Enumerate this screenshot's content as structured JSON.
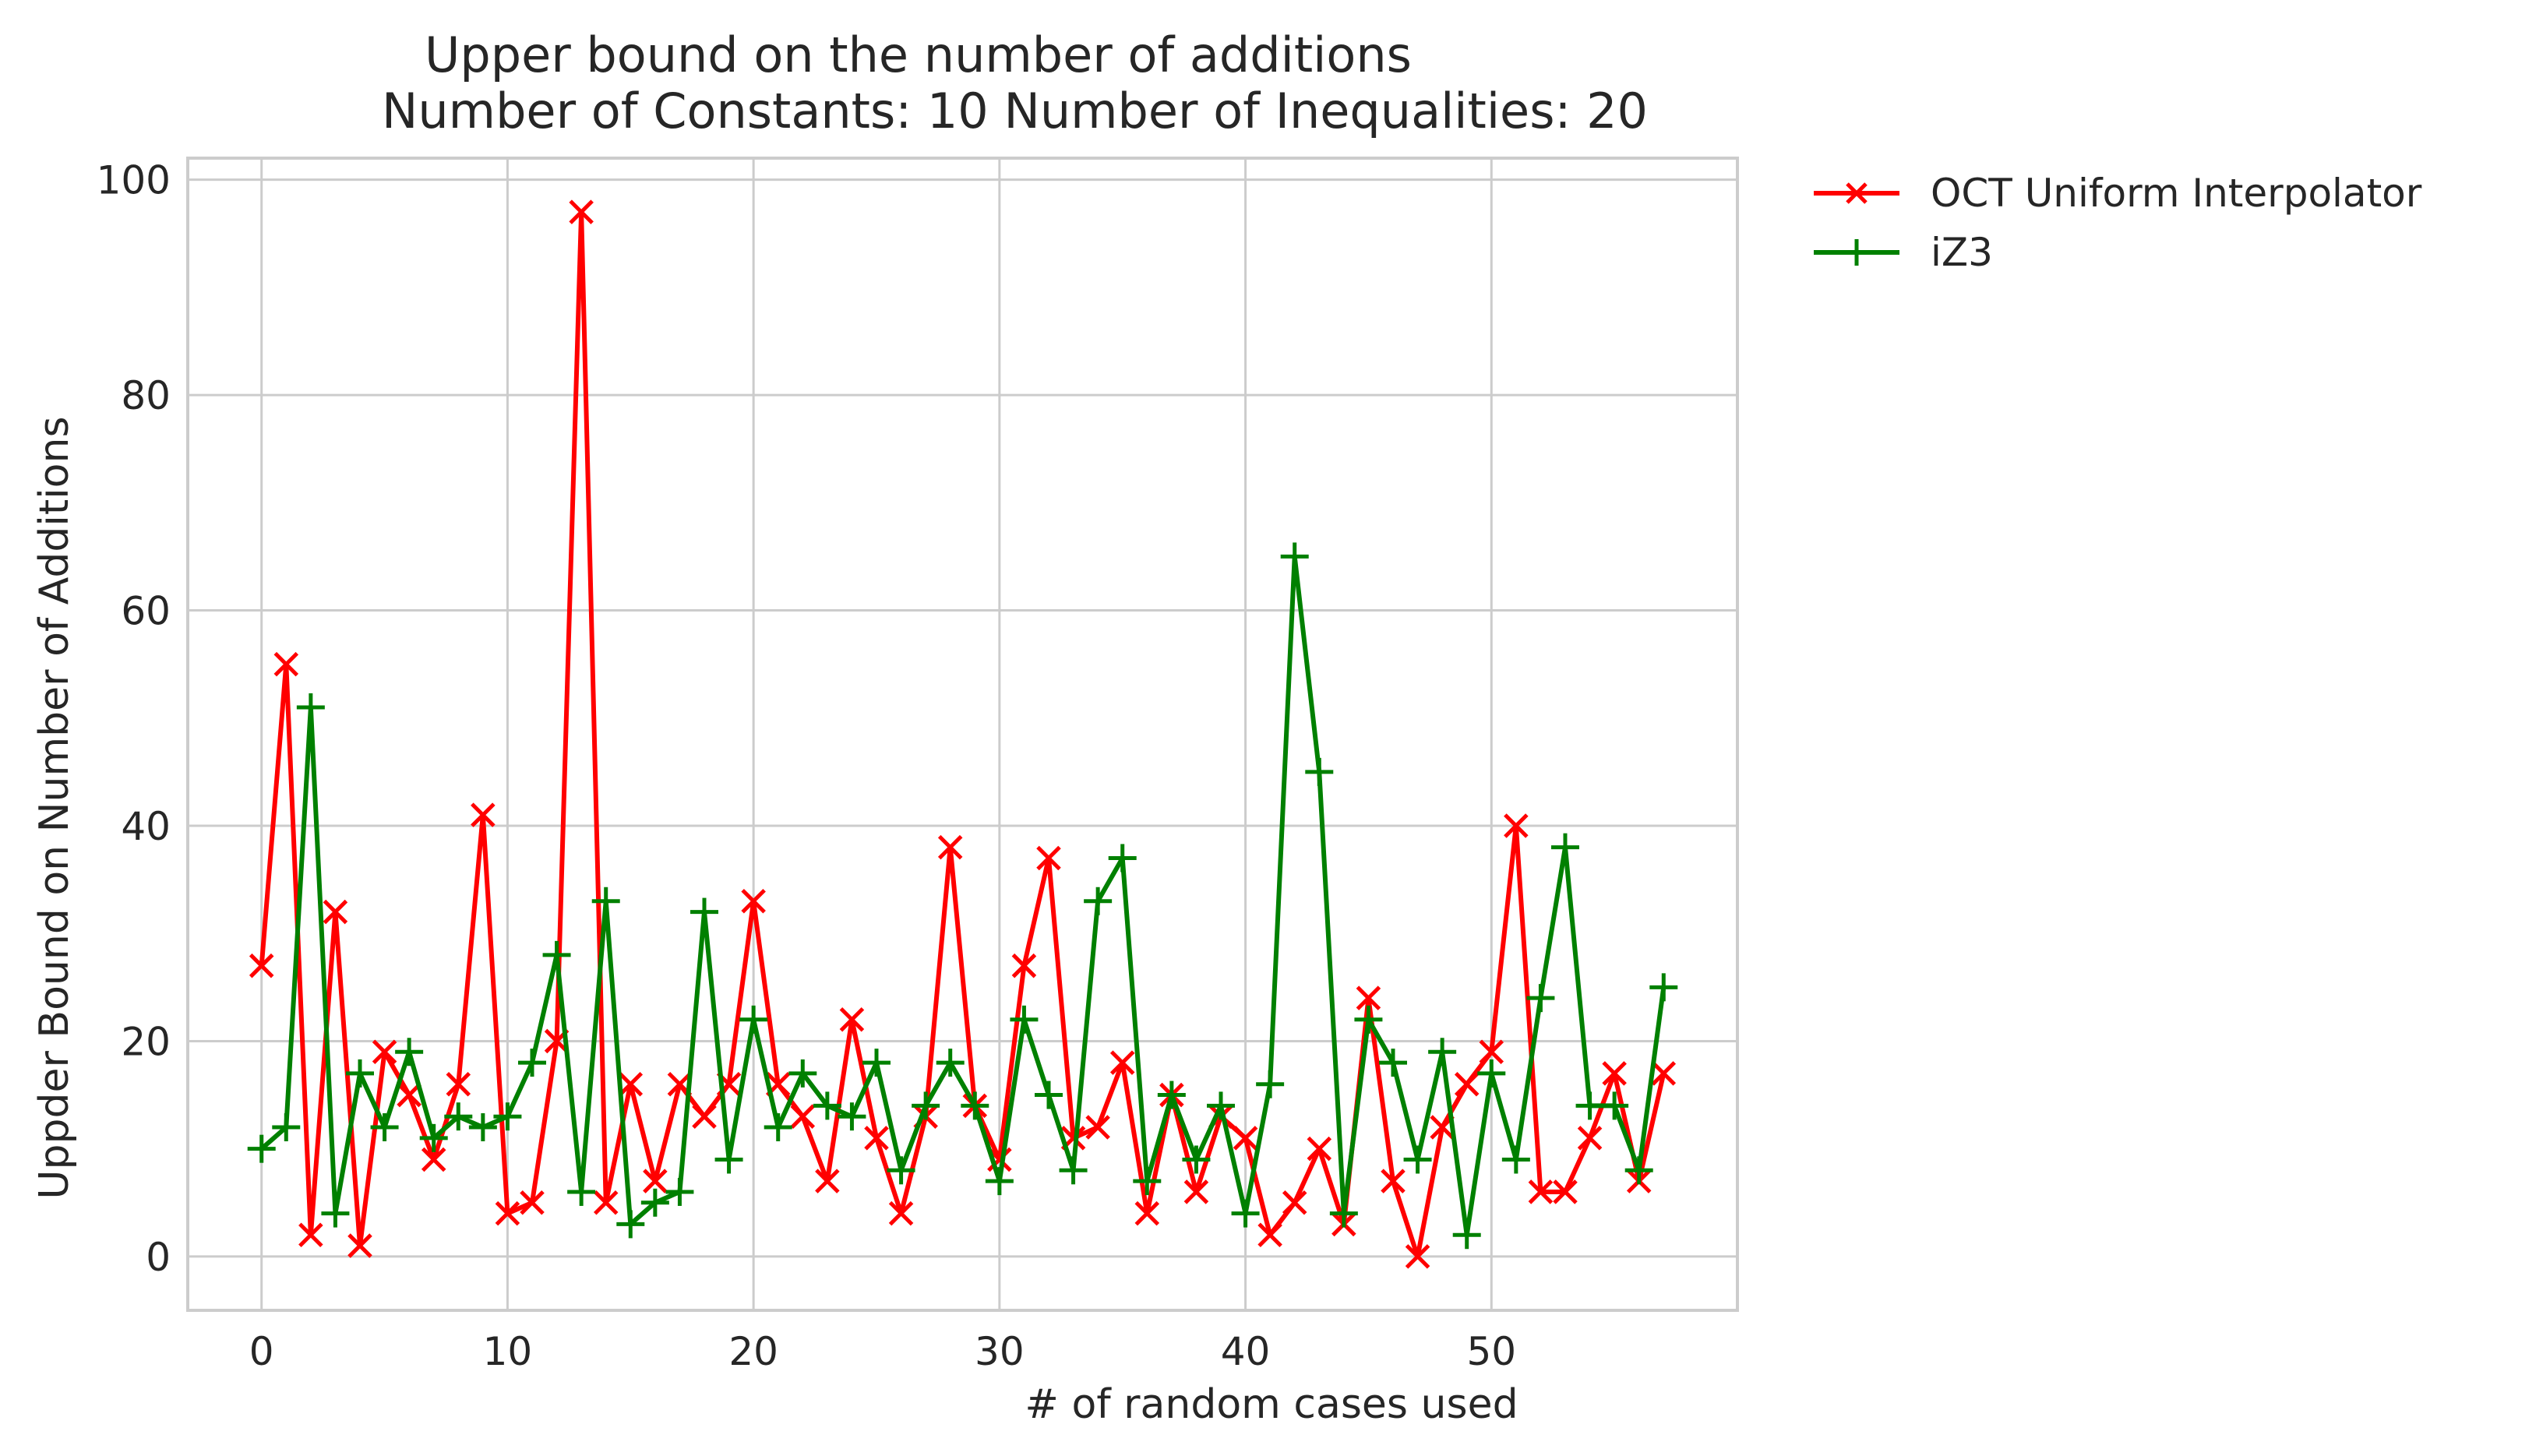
{
  "chart_data": {
    "type": "line",
    "title": [
      "Upper bound on the number of additions",
      "Number of Constants: 10 Number of Inequalities: 20"
    ],
    "xlabel": "# of random cases used",
    "ylabel": "Uppder Bound on Number of Additions",
    "xlim": [
      -3,
      60
    ],
    "ylim": [
      -5,
      102
    ],
    "xticks": [
      0,
      10,
      20,
      30,
      40,
      50
    ],
    "yticks": [
      0,
      20,
      40,
      60,
      80,
      100
    ],
    "grid": true,
    "legend_position": "outside-top-right",
    "x": [
      0,
      1,
      2,
      3,
      4,
      5,
      6,
      7,
      8,
      9,
      10,
      11,
      12,
      13,
      14,
      15,
      16,
      17,
      18,
      19,
      20,
      21,
      22,
      23,
      24,
      25,
      26,
      27,
      28,
      29,
      30,
      31,
      32,
      33,
      34,
      35,
      36,
      37,
      38,
      39,
      40,
      41,
      42,
      43,
      44,
      45,
      46,
      47,
      48,
      49,
      50,
      51,
      52,
      53,
      54,
      55,
      56,
      57
    ],
    "series": [
      {
        "name": "OCT Uniform Interpolator",
        "color": "#ff0000",
        "marker": "x",
        "values": [
          27,
          55,
          2,
          32,
          1,
          19,
          15,
          9,
          16,
          41,
          4,
          5,
          20,
          97,
          5,
          16,
          7,
          16,
          13,
          16,
          33,
          16,
          13,
          7,
          22,
          11,
          4,
          13,
          38,
          14,
          9,
          27,
          37,
          11,
          12,
          18,
          4,
          15,
          6,
          13,
          11,
          2,
          5,
          10,
          3,
          24,
          7,
          0,
          12,
          16,
          19,
          40,
          6,
          6,
          11,
          17,
          7,
          17
        ]
      },
      {
        "name": "iZ3",
        "color": "#008000",
        "marker": "+",
        "values": [
          10,
          12,
          51,
          4,
          17,
          12,
          19,
          11,
          13,
          12,
          13,
          18,
          28,
          6,
          33,
          3,
          5,
          6,
          32,
          9,
          22,
          12,
          17,
          14,
          13,
          18,
          8,
          14,
          18,
          14,
          7,
          22,
          15,
          8,
          33,
          37,
          7,
          15,
          9,
          14,
          4,
          16,
          65,
          45,
          4,
          22,
          18,
          9,
          19,
          2,
          17,
          9,
          24,
          38,
          14,
          14,
          8,
          25
        ]
      }
    ]
  }
}
